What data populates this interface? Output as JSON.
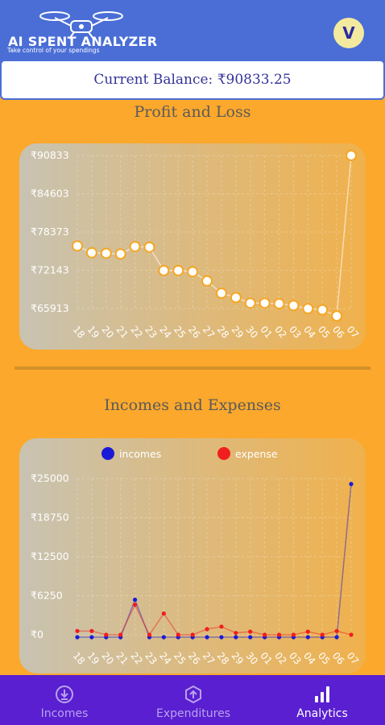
{
  "header": {
    "app_title": "AI SPENT ANALYZER",
    "tagline": "Take control of your spendings",
    "avatar_letter": "V"
  },
  "balance": {
    "label": "Current Balance: ₹90833.25"
  },
  "profit_loss": {
    "title": "Profit and Loss",
    "chart_data": {
      "type": "line",
      "title": "Profit and Loss",
      "x": [
        "18",
        "19",
        "20",
        "21",
        "22",
        "23",
        "24",
        "25",
        "26",
        "27",
        "28",
        "29",
        "30",
        "01",
        "02",
        "03",
        "04",
        "05",
        "06",
        "07"
      ],
      "y_ticks": [
        "₹90833",
        "₹84603",
        "₹78373",
        "₹72143",
        "₹65913"
      ],
      "ylim": [
        65913,
        90833
      ],
      "values": [
        76100,
        75000,
        74900,
        74800,
        76000,
        75900,
        72100,
        72100,
        71900,
        70400,
        68400,
        67700,
        66800,
        66800,
        66700,
        66400,
        65900,
        65700,
        64700,
        90833
      ],
      "point_color": "#ffffff",
      "point_stroke": "#f5a623"
    }
  },
  "incomes_expenses": {
    "title": "Incomes and Expenses",
    "chart_data": {
      "type": "line",
      "title": "Incomes and Expenses",
      "x": [
        "18",
        "19",
        "20",
        "21",
        "22",
        "23",
        "24",
        "25",
        "26",
        "27",
        "28",
        "29",
        "30",
        "01",
        "02",
        "03",
        "04",
        "05",
        "06",
        "07"
      ],
      "y_ticks": [
        "₹25000",
        "₹18750",
        "₹12500",
        "₹6250",
        "₹0"
      ],
      "ylim": [
        0,
        25000
      ],
      "series": [
        {
          "name": "incomes",
          "color": "#1a1ad6",
          "values": [
            0,
            0,
            0,
            0,
            6000,
            0,
            0,
            0,
            0,
            0,
            0,
            0,
            0,
            0,
            0,
            0,
            0,
            0,
            0,
            24500
          ]
        },
        {
          "name": "expense",
          "color": "#f01e1e",
          "values": [
            600,
            600,
            0,
            0,
            4800,
            0,
            3400,
            0,
            0,
            900,
            1300,
            300,
            500,
            0,
            0,
            0,
            500,
            0,
            600,
            0
          ]
        }
      ]
    }
  },
  "nav": {
    "items": [
      {
        "label": "Incomes",
        "icon": "download-circle-icon"
      },
      {
        "label": "Expenditures",
        "icon": "upload-circle-icon"
      },
      {
        "label": "Analytics",
        "icon": "bar-chart-icon"
      }
    ],
    "active": "Analytics"
  }
}
